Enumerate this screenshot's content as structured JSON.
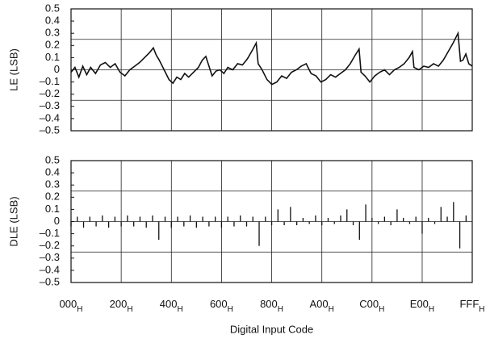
{
  "chart_data": [
    {
      "type": "line",
      "ylabel": "LE (LSB)",
      "color": "#111111",
      "xlim": [
        0,
        4095
      ],
      "xticks": [
        0,
        512,
        1024,
        1536,
        2048,
        2560,
        3072,
        3584,
        4095
      ],
      "ylim": [
        -0.5,
        0.5
      ],
      "yticks": [
        0.5,
        0.4,
        0.3,
        0.2,
        0.1,
        0,
        {
          "value": -0.1,
          "label": "–0.1"
        },
        {
          "value": -0.2,
          "label": "–0.2"
        },
        {
          "value": -0.3,
          "label": "–0.3"
        },
        {
          "value": -0.4,
          "label": "–0.4"
        },
        {
          "value": -0.5,
          "label": "–0.5"
        }
      ],
      "ygrid": [
        -0.25,
        0,
        0.25
      ],
      "x": [
        0,
        40,
        80,
        120,
        160,
        200,
        250,
        300,
        350,
        400,
        450,
        500,
        550,
        600,
        650,
        700,
        750,
        800,
        840,
        870,
        900,
        950,
        1000,
        1040,
        1080,
        1120,
        1160,
        1200,
        1250,
        1300,
        1340,
        1376,
        1400,
        1440,
        1480,
        1520,
        1560,
        1600,
        1650,
        1700,
        1750,
        1800,
        1850,
        1890,
        1910,
        1950,
        2000,
        2050,
        2100,
        2150,
        2200,
        2250,
        2300,
        2350,
        2400,
        2450,
        2500,
        2550,
        2600,
        2650,
        2700,
        2750,
        2800,
        2850,
        2900,
        2940,
        2960,
        3000,
        3050,
        3100,
        3150,
        3200,
        3250,
        3300,
        3350,
        3400,
        3450,
        3485,
        3500,
        3550,
        3600,
        3650,
        3700,
        3750,
        3800,
        3850,
        3900,
        3950,
        3975,
        4000,
        4030,
        4060,
        4095
      ],
      "values": [
        -0.02,
        0.02,
        -0.06,
        0.03,
        -0.04,
        0.02,
        -0.03,
        0.04,
        0.06,
        0.02,
        0.05,
        -0.02,
        -0.05,
        0.0,
        0.03,
        0.06,
        0.1,
        0.14,
        0.18,
        0.12,
        0.08,
        0.0,
        -0.08,
        -0.11,
        -0.06,
        -0.08,
        -0.03,
        -0.06,
        -0.02,
        0.02,
        0.08,
        0.11,
        0.05,
        -0.05,
        -0.01,
        0.0,
        -0.03,
        0.02,
        0.0,
        0.05,
        0.04,
        0.09,
        0.16,
        0.22,
        0.05,
        0.0,
        -0.08,
        -0.12,
        -0.1,
        -0.05,
        -0.07,
        -0.02,
        0.0,
        0.03,
        0.05,
        -0.03,
        -0.05,
        -0.1,
        -0.08,
        -0.04,
        -0.06,
        -0.03,
        0.0,
        0.05,
        0.12,
        0.17,
        -0.02,
        -0.05,
        -0.1,
        -0.05,
        -0.02,
        0.0,
        -0.04,
        0.0,
        0.02,
        0.05,
        0.1,
        0.15,
        0.02,
        0.0,
        0.03,
        0.02,
        0.05,
        0.03,
        0.08,
        0.15,
        0.22,
        0.3,
        0.07,
        0.08,
        0.13,
        0.05,
        0.03
      ]
    },
    {
      "type": "bar",
      "ylabel": "DLE (LSB)",
      "xlabel": "Digital Input Code",
      "color": "#111111",
      "xlim": [
        0,
        4095
      ],
      "xticks": [
        {
          "value": 0,
          "label": "000"
        },
        {
          "value": 512,
          "label": "200"
        },
        {
          "value": 1024,
          "label": "400"
        },
        {
          "value": 1536,
          "label": "600"
        },
        {
          "value": 2048,
          "label": "800"
        },
        {
          "value": 2560,
          "label": "A00"
        },
        {
          "value": 3072,
          "label": "C00"
        },
        {
          "value": 3584,
          "label": "E00"
        },
        {
          "value": 4095,
          "label": "FFF"
        }
      ],
      "x_tick_subscript": "H",
      "ylim": [
        -0.5,
        0.5
      ],
      "yticks": [
        0.5,
        0.4,
        0.3,
        0.2,
        0.1,
        0,
        {
          "value": -0.1,
          "label": "–0.1"
        },
        {
          "value": -0.2,
          "label": "–0.2"
        },
        {
          "value": -0.3,
          "label": "–0.3"
        },
        {
          "value": -0.4,
          "label": "–0.4"
        },
        {
          "value": -0.5,
          "label": "–0.5"
        }
      ],
      "ygrid": [
        -0.25,
        0,
        0.25
      ],
      "x": [
        0,
        64,
        128,
        192,
        256,
        320,
        384,
        448,
        512,
        576,
        640,
        704,
        768,
        832,
        896,
        960,
        1024,
        1088,
        1152,
        1216,
        1280,
        1344,
        1408,
        1472,
        1536,
        1600,
        1664,
        1728,
        1792,
        1856,
        1920,
        1984,
        2048,
        2112,
        2176,
        2240,
        2304,
        2368,
        2432,
        2496,
        2560,
        2624,
        2688,
        2752,
        2816,
        2880,
        2944,
        3008,
        3072,
        3136,
        3200,
        3264,
        3328,
        3392,
        3456,
        3520,
        3584,
        3648,
        3712,
        3776,
        3840,
        3904,
        3968,
        4032
      ],
      "values": [
        -0.04,
        0.04,
        -0.05,
        0.04,
        -0.04,
        0.05,
        -0.05,
        0.04,
        -0.04,
        0.05,
        -0.04,
        0.04,
        -0.05,
        0.05,
        -0.15,
        0.04,
        -0.05,
        0.04,
        -0.04,
        0.05,
        -0.05,
        0.04,
        -0.04,
        0.04,
        -0.05,
        0.04,
        -0.04,
        0.05,
        -0.04,
        0.04,
        -0.2,
        0.04,
        -0.03,
        0.1,
        -0.03,
        0.12,
        -0.03,
        0.03,
        -0.02,
        0.05,
        -0.03,
        0.03,
        -0.02,
        0.05,
        0.1,
        -0.03,
        -0.15,
        0.14,
        0.03,
        -0.02,
        0.04,
        -0.03,
        0.1,
        0.03,
        -0.02,
        0.04,
        -0.1,
        0.03,
        -0.02,
        0.12,
        0.04,
        0.16,
        -0.22,
        0.05
      ]
    }
  ]
}
